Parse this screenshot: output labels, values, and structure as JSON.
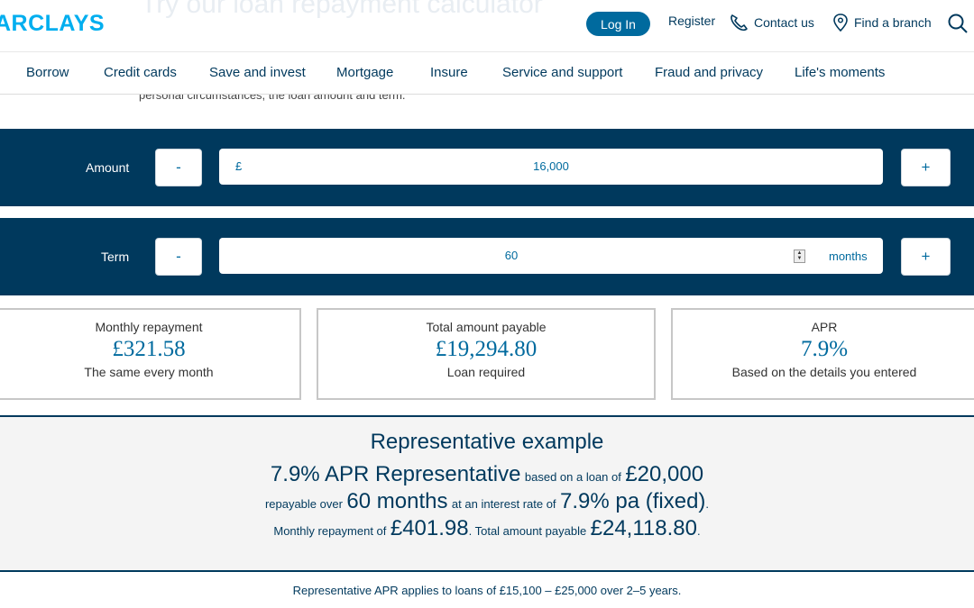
{
  "header": {
    "ghost_title": "Try our loan repayment calculator",
    "logo": "ARCLAYS",
    "login_label": "Log In",
    "register_label": "Register",
    "contact_label": "Contact us",
    "branch_label": "Find a branch",
    "icons": [
      "phone-icon",
      "location-pin-icon",
      "search-icon"
    ]
  },
  "nav": {
    "items": [
      "Borrow",
      "Credit cards",
      "Save and invest",
      "Mortgage",
      "Insure",
      "Service and support",
      "Fraud and privacy",
      "Life's moments"
    ]
  },
  "intro_text": "personal circumstances, the loan amount and term.",
  "calculator": {
    "amount": {
      "label": "Amount",
      "currency": "£",
      "value": "16,000",
      "minus": "-",
      "plus": "+"
    },
    "term": {
      "label": "Term",
      "value": "60",
      "unit": "months",
      "minus": "-",
      "plus": "+"
    }
  },
  "results": [
    {
      "label": "Monthly repayment",
      "value": "£321.58",
      "note": "The same every month"
    },
    {
      "label": "Total amount payable",
      "value": "£19,294.80",
      "note": "Loan required"
    },
    {
      "label": "APR",
      "value": "7.9%",
      "note": "Based on the details you entered"
    }
  ],
  "representative": {
    "title": "Representative example",
    "apr": "7.9% APR Representative",
    "based_on": "based on a loan of",
    "loan": "£20,000",
    "repayable_over": "repayable over",
    "term": "60 months",
    "interest_text": "at an interest rate of",
    "rate": "7.9% pa (fixed)",
    "dot1": ".",
    "monthly_text": "Monthly repayment of",
    "monthly": "£401.98",
    "total_text": ". Total amount payable",
    "total": "£24,118.80",
    "dot2": "."
  },
  "footnote": "Representative APR applies to loans of £15,100 – £25,000 over 2–5 years.",
  "colors": {
    "navy": "#00395d",
    "accent": "#006a9e",
    "logo": "#00aeef"
  }
}
